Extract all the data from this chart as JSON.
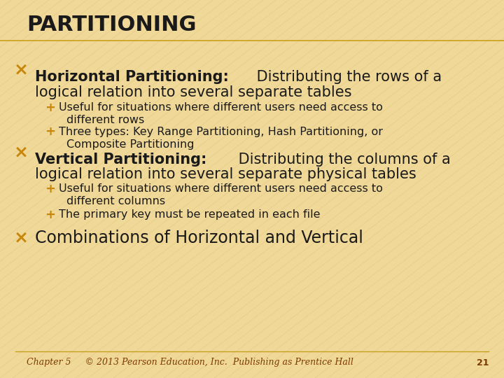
{
  "title": "PARTITIONING",
  "bg_color": "#F0D898",
  "title_color": "#1a1a1a",
  "title_fontsize": 22,
  "bullet_color": "#C8860A",
  "text_color": "#1a1a1a",
  "footer_color": "#7B3B00",
  "slide_number": "21",
  "footer_text": "Chapter 5     © 2013 Pearson Education, Inc.  Publishing as Prentice Hall",
  "line_color": "#C8A020"
}
